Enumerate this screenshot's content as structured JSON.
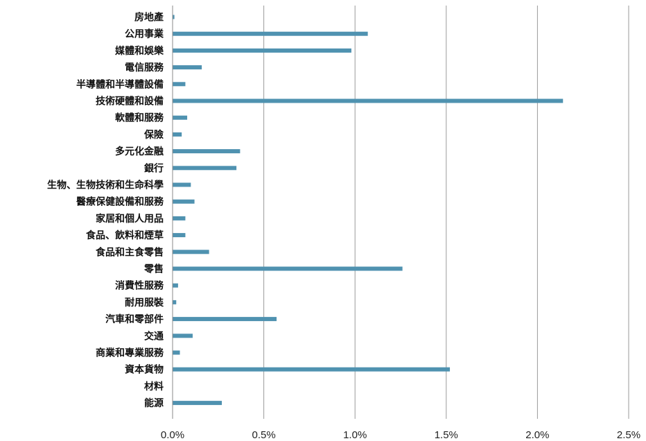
{
  "chart_data": {
    "type": "bar",
    "orientation": "horizontal",
    "categories": [
      "房地產",
      "公用事業",
      "媒體和娛樂",
      "電信服務",
      "半導體和半導體設備",
      "技術硬體和設備",
      "軟體和服務",
      "保險",
      "多元化金融",
      "銀行",
      "生物、生物技術和生命科學",
      "醫療保健設備和服務",
      "家居和個人用品",
      "食品、飲料和煙草",
      "食品和主食零售",
      "零售",
      "消費性服務",
      "耐用服裝",
      "汽車和零部件",
      "交通",
      "商業和專業服務",
      "資本貨物",
      "材料",
      "能源"
    ],
    "values": [
      0.01,
      1.07,
      0.98,
      0.16,
      0.07,
      2.14,
      0.08,
      0.05,
      0.37,
      0.35,
      0.1,
      0.12,
      0.07,
      0.07,
      0.2,
      1.26,
      0.03,
      0.02,
      0.57,
      0.11,
      0.04,
      1.52,
      0.0,
      0.27
    ],
    "xlim": [
      0,
      2.5
    ],
    "xticks": [
      0,
      0.5,
      1.0,
      1.5,
      2.0,
      2.5
    ],
    "xtick_labels": [
      "0.0%",
      "0.5%",
      "1.0%",
      "1.5%",
      "2.0%",
      "2.5%"
    ],
    "title": "",
    "xlabel": "",
    "ylabel": "",
    "grid": "vertical",
    "bar_color": "#4f92b0",
    "grid_color": "#9a9a9a"
  }
}
